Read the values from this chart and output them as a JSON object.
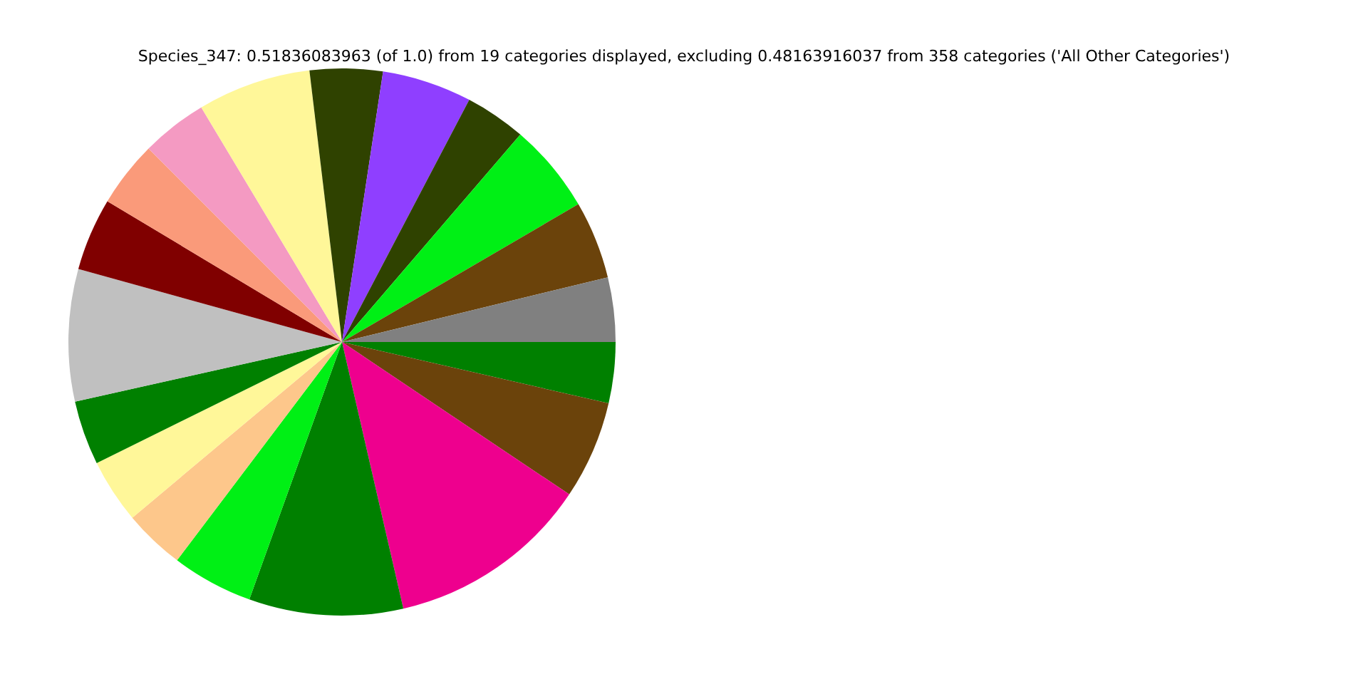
{
  "chart_data": {
    "type": "pie",
    "title": "Species_347: 0.51836083963 (of 1.0) from 19 categories displayed, excluding 0.48163916037 from 358 categories ('All Other Categories')",
    "categories": [
      null,
      null,
      null,
      null,
      null,
      null,
      null,
      null,
      null,
      null,
      null,
      null,
      null,
      null,
      null,
      null,
      null,
      null,
      null
    ],
    "values": [
      3.6,
      5.8,
      12.0,
      9.1,
      4.8,
      3.6,
      3.8,
      3.8,
      7.8,
      4.3,
      3.9,
      3.9,
      6.7,
      4.3,
      5.3,
      3.6,
      5.3,
      4.6,
      3.8
    ],
    "colors": [
      "#008000",
      "#6b430b",
      "#ee008e",
      "#008000",
      "#00f015",
      "#fdc78b",
      "#fff799",
      "#008000",
      "#c0c0c0",
      "#800000",
      "#fa9a7a",
      "#f49ac2",
      "#fff799",
      "#2f4200",
      "#8f3fff",
      "#2f4200",
      "#00f015",
      "#6b430b",
      "#808080"
    ],
    "legend": false
  }
}
